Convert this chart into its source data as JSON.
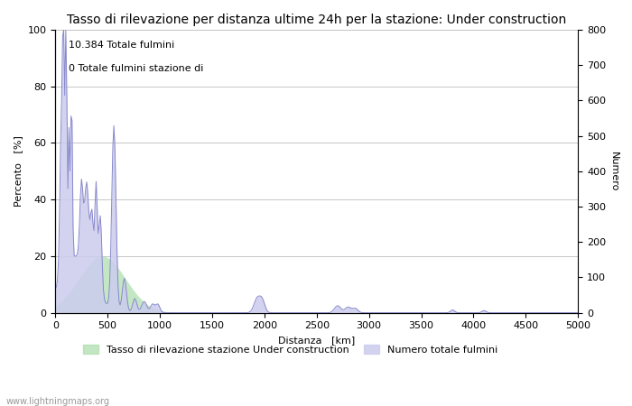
{
  "title": "Tasso di rilevazione per distanza ultime 24h per la stazione: Under construction",
  "xlabel": "Distanza   [km]",
  "ylabel_left": "Percento   [%]",
  "ylabel_right": "Numero",
  "annotation_line1": "10.384 Totale fulmini",
  "annotation_line2": "0 Totale fulmini stazione di",
  "xlim": [
    0,
    5000
  ],
  "ylim_left": [
    0,
    100
  ],
  "ylim_right": [
    0,
    800
  ],
  "xticks": [
    0,
    500,
    1000,
    1500,
    2000,
    2500,
    3000,
    3500,
    4000,
    4500,
    5000
  ],
  "yticks_left": [
    0,
    20,
    40,
    60,
    80,
    100
  ],
  "yticks_right": [
    0,
    100,
    200,
    300,
    400,
    500,
    600,
    700,
    800
  ],
  "legend_label_green": "Tasso di rilevazione stazione Under construction",
  "legend_label_blue": "Numero totale fulmini",
  "watermark": "www.lightningmaps.org",
  "line_color": "#8888cc",
  "fill_blue_color": "#ccccee",
  "fill_green_color": "#aaddaa",
  "background_color": "#ffffff",
  "grid_color": "#bbbbbb",
  "title_fontsize": 10,
  "axis_fontsize": 8,
  "tick_fontsize": 8,
  "annotation_fontsize": 8
}
